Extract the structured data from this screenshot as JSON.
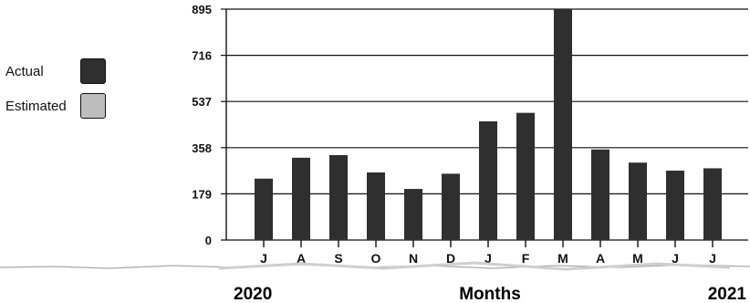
{
  "legend": {
    "items": [
      {
        "label": "Actual",
        "color": "#2f2f2f"
      },
      {
        "label": "Estimated",
        "color": "#bdbdbd"
      }
    ]
  },
  "footer": {
    "left_year": "2020",
    "center_label": "Months",
    "right_year": "2021"
  },
  "chart_data": {
    "type": "bar",
    "categories": [
      "J",
      "A",
      "S",
      "O",
      "N",
      "D",
      "J",
      "F",
      "M",
      "A",
      "M",
      "J",
      "J"
    ],
    "series": [
      {
        "name": "Actual",
        "values": [
          238,
          319,
          329,
          262,
          198,
          257,
          460,
          493,
          895,
          351,
          300,
          269,
          278
        ]
      }
    ],
    "yticks": [
      0,
      179,
      358,
      537,
      716,
      895
    ],
    "ylim": [
      0,
      895
    ],
    "xlabel": "Months",
    "ylabel": "",
    "grid": true,
    "legend_position": "left",
    "bar_color": "#2f2f2f"
  }
}
